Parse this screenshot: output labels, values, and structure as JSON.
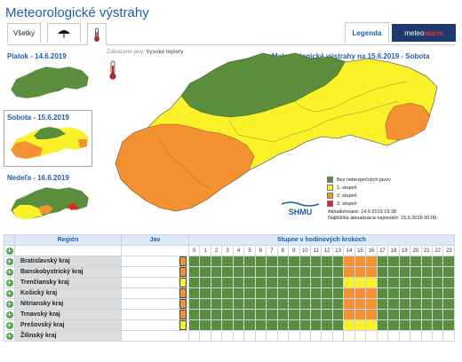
{
  "title": "Meteorologické výstrahy",
  "tabs": [
    {
      "label": "Všetky",
      "icon": ""
    },
    {
      "label": "",
      "icon": "umbrella-icon"
    },
    {
      "label": "",
      "icon": "thermometer-icon"
    }
  ],
  "legend_tab": "Legenda",
  "logo": {
    "prefix": "meteo",
    "accent": "alarm"
  },
  "days": [
    {
      "label": "Piatok - 14.6.2019"
    },
    {
      "label": "Sobota - 15.6.2019"
    },
    {
      "label": "Nedeľa - 16.6.2019"
    }
  ],
  "shown_phenomenon": {
    "prefix": "Zobrazene javy:",
    "value": "Vysoké teploty"
  },
  "map_title": "Meteorologické výstrahy na 15.6.2019 - Sobota",
  "legend": [
    {
      "label": "Bez nebezpečných javov",
      "color": "#5a8e3c"
    },
    {
      "label": "1. stupeň",
      "color": "#fbf128"
    },
    {
      "label": "2. stupeň",
      "color": "#f39133"
    },
    {
      "label": "3. stupeň",
      "color": "#e8242b"
    }
  ],
  "shmu_logo": "SHMU",
  "updated": "Aktualizované: 14.6.2019 19:38",
  "next_update": "Najbližšia aktualizácia najneskôr: 15.6.2019 00:00",
  "table": {
    "col_region": "Región",
    "col_jav": "Jav",
    "col_hours": "Stupne v hodinových krokoch",
    "hours": [
      "0",
      "1",
      "2",
      "3",
      "4",
      "5",
      "6",
      "7",
      "8",
      "9",
      "10",
      "11",
      "12",
      "13",
      "14",
      "15",
      "16",
      "17",
      "18",
      "19",
      "20",
      "21",
      "22",
      "23"
    ],
    "rows": [
      {
        "region": "Bratislavský kraj",
        "icon_color": "#f39133",
        "hours": [
          0,
          0,
          0,
          0,
          0,
          0,
          0,
          0,
          0,
          0,
          0,
          0,
          0,
          0,
          2,
          2,
          2,
          0,
          0,
          0,
          0,
          0,
          0,
          0
        ]
      },
      {
        "region": "Banskobystrický kraj",
        "icon_color": "#f39133",
        "hours": [
          0,
          0,
          0,
          0,
          0,
          0,
          0,
          0,
          0,
          0,
          0,
          0,
          0,
          0,
          2,
          2,
          2,
          0,
          0,
          0,
          0,
          0,
          0,
          0
        ]
      },
      {
        "region": "Trenčiansky kraj",
        "icon_color": "#fbf128",
        "hours": [
          0,
          0,
          0,
          0,
          0,
          0,
          0,
          0,
          0,
          0,
          0,
          0,
          0,
          0,
          1,
          1,
          1,
          0,
          0,
          0,
          0,
          0,
          0,
          0
        ]
      },
      {
        "region": "Košický kraj",
        "icon_color": "#f39133",
        "hours": [
          0,
          0,
          0,
          0,
          0,
          0,
          0,
          0,
          0,
          0,
          0,
          0,
          0,
          0,
          2,
          2,
          2,
          0,
          0,
          0,
          0,
          0,
          0,
          0
        ]
      },
      {
        "region": "Nitriansky kraj",
        "icon_color": "#f39133",
        "hours": [
          0,
          0,
          0,
          0,
          0,
          0,
          0,
          0,
          0,
          0,
          0,
          0,
          0,
          0,
          2,
          2,
          2,
          0,
          0,
          0,
          0,
          0,
          0,
          0
        ]
      },
      {
        "region": "Trnavský kraj",
        "icon_color": "#f39133",
        "hours": [
          0,
          0,
          0,
          0,
          0,
          0,
          0,
          0,
          0,
          0,
          0,
          0,
          0,
          0,
          2,
          2,
          2,
          0,
          0,
          0,
          0,
          0,
          0,
          0
        ]
      },
      {
        "region": "Prešovský kraj",
        "icon_color": "#fbf128",
        "hours": [
          0,
          0,
          0,
          0,
          0,
          0,
          0,
          0,
          0,
          0,
          0,
          0,
          0,
          0,
          1,
          1,
          1,
          0,
          0,
          0,
          0,
          0,
          0,
          0
        ]
      },
      {
        "region": "Žilinský kraj",
        "icon_color": "",
        "hours": []
      }
    ]
  }
}
